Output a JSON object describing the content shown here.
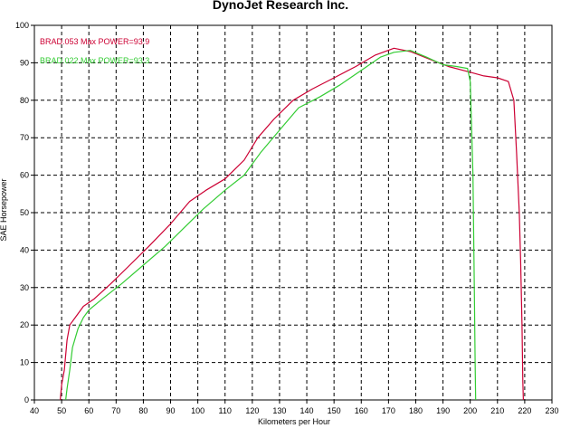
{
  "chart_data": {
    "type": "line",
    "title": "DynoJet Research Inc.",
    "xlabel": "Kilometers per Hour",
    "ylabel": "SAE Horsepower",
    "xlim": [
      40,
      230
    ],
    "ylim": [
      0,
      100
    ],
    "x_ticks": [
      40,
      50,
      60,
      70,
      80,
      90,
      100,
      110,
      120,
      130,
      140,
      150,
      160,
      170,
      180,
      190,
      200,
      210,
      220,
      230
    ],
    "y_ticks": [
      0,
      10,
      20,
      30,
      40,
      50,
      60,
      70,
      80,
      90,
      100
    ],
    "grid": true,
    "legend_position": "top-left",
    "series": [
      {
        "name": "BRAD.053  Max POWER=93.9",
        "color": "#cc0033",
        "points": [
          [
            49.5,
            0
          ],
          [
            50,
            4
          ],
          [
            51,
            8
          ],
          [
            52,
            16
          ],
          [
            53,
            20
          ],
          [
            55,
            22
          ],
          [
            58,
            25
          ],
          [
            62,
            27
          ],
          [
            68,
            31
          ],
          [
            75,
            36
          ],
          [
            82,
            41
          ],
          [
            90,
            47
          ],
          [
            97,
            53
          ],
          [
            103,
            56
          ],
          [
            110,
            59
          ],
          [
            117,
            64
          ],
          [
            122,
            70
          ],
          [
            128,
            75
          ],
          [
            135,
            80
          ],
          [
            142,
            83
          ],
          [
            150,
            86
          ],
          [
            158,
            89
          ],
          [
            165,
            92
          ],
          [
            172,
            93.9
          ],
          [
            178,
            93
          ],
          [
            185,
            91
          ],
          [
            192,
            89
          ],
          [
            200,
            87.5
          ],
          [
            205,
            86.5
          ],
          [
            210,
            86
          ],
          [
            214,
            85
          ],
          [
            216,
            80
          ],
          [
            217,
            66
          ],
          [
            218,
            50
          ],
          [
            218.5,
            37
          ],
          [
            219,
            20
          ],
          [
            219.3,
            5
          ],
          [
            219.5,
            0
          ]
        ]
      },
      {
        "name": "BRAD.022  Max POWER=93.3",
        "color": "#33cc33",
        "points": [
          [
            51.5,
            0
          ],
          [
            52,
            3
          ],
          [
            53,
            8
          ],
          [
            54,
            14
          ],
          [
            56,
            19
          ],
          [
            58,
            22
          ],
          [
            60,
            24
          ],
          [
            65,
            27
          ],
          [
            72,
            31
          ],
          [
            80,
            36
          ],
          [
            88,
            41
          ],
          [
            95,
            46
          ],
          [
            102,
            51
          ],
          [
            110,
            56
          ],
          [
            117,
            60
          ],
          [
            123,
            66
          ],
          [
            130,
            72
          ],
          [
            137,
            78
          ],
          [
            145,
            81
          ],
          [
            152,
            84
          ],
          [
            160,
            88
          ],
          [
            167,
            91.5
          ],
          [
            172,
            92.8
          ],
          [
            178,
            93.3
          ],
          [
            184,
            91.5
          ],
          [
            190,
            89.5
          ],
          [
            195,
            89
          ],
          [
            199,
            88.5
          ],
          [
            200,
            85
          ],
          [
            201,
            60
          ],
          [
            201.5,
            30
          ],
          [
            201.8,
            10
          ],
          [
            202,
            0
          ]
        ]
      }
    ]
  }
}
